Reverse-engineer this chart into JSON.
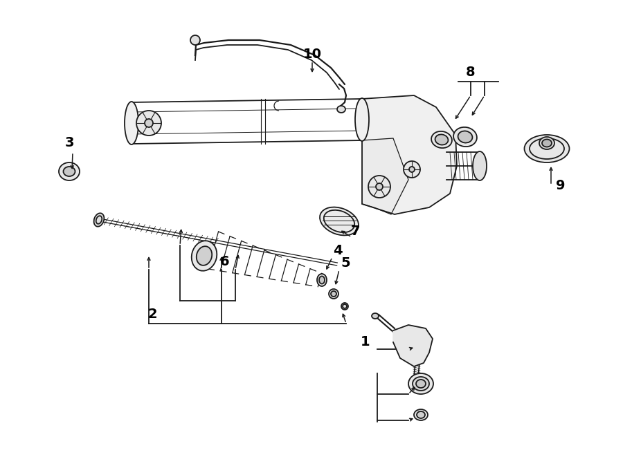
{
  "bg_color": "#ffffff",
  "line_color": "#1a1a1a",
  "text_color": "#000000",
  "fig_width": 9.0,
  "fig_height": 6.61,
  "dpi": 100
}
